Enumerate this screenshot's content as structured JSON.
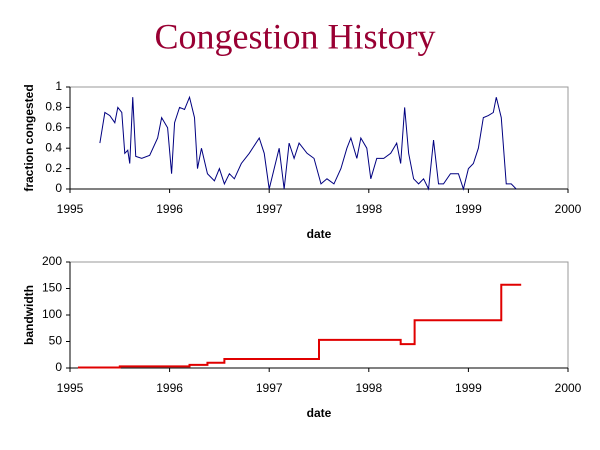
{
  "title": "Congestion History",
  "chart_data": [
    {
      "type": "line",
      "xlabel": "date",
      "ylabel": "fraction congested",
      "xlim": [
        1995,
        2000
      ],
      "xticks": [
        1995,
        1996,
        1997,
        1998,
        1999,
        2000
      ],
      "ylim": [
        0,
        1
      ],
      "yticks": [
        0,
        0.2,
        0.4,
        0.6,
        0.8,
        1
      ],
      "grid": false,
      "series": [
        {
          "color": "#000080",
          "x": [
            1995.3,
            1995.35,
            1995.4,
            1995.45,
            1995.48,
            1995.52,
            1995.55,
            1995.58,
            1995.6,
            1995.63,
            1995.66,
            1995.72,
            1995.8,
            1995.88,
            1995.92,
            1995.98,
            1996.02,
            1996.05,
            1996.1,
            1996.15,
            1996.2,
            1996.25,
            1996.28,
            1996.32,
            1996.38,
            1996.45,
            1996.5,
            1996.55,
            1996.6,
            1996.65,
            1996.72,
            1996.8,
            1996.9,
            1996.95,
            1997.0,
            1997.05,
            1997.1,
            1997.15,
            1997.2,
            1997.25,
            1997.3,
            1997.38,
            1997.45,
            1997.52,
            1997.58,
            1997.65,
            1997.72,
            1997.78,
            1997.82,
            1997.88,
            1997.92,
            1997.98,
            1998.02,
            1998.08,
            1998.15,
            1998.22,
            1998.28,
            1998.32,
            1998.36,
            1998.4,
            1998.45,
            1998.5,
            1998.55,
            1998.6,
            1998.65,
            1998.7,
            1998.75,
            1998.82,
            1998.9,
            1998.95,
            1999.0,
            1999.05,
            1999.1,
            1999.15,
            1999.2,
            1999.25,
            1999.28,
            1999.33,
            1999.38,
            1999.43,
            1999.48
          ],
          "values": [
            0.45,
            0.75,
            0.72,
            0.65,
            0.8,
            0.75,
            0.35,
            0.38,
            0.25,
            0.9,
            0.32,
            0.3,
            0.33,
            0.5,
            0.7,
            0.6,
            0.15,
            0.65,
            0.8,
            0.78,
            0.9,
            0.7,
            0.2,
            0.4,
            0.15,
            0.08,
            0.2,
            0.05,
            0.15,
            0.1,
            0.25,
            0.35,
            0.5,
            0.35,
            0.0,
            0.2,
            0.4,
            0.0,
            0.45,
            0.3,
            0.45,
            0.35,
            0.3,
            0.05,
            0.1,
            0.05,
            0.2,
            0.4,
            0.5,
            0.3,
            0.5,
            0.4,
            0.1,
            0.3,
            0.3,
            0.35,
            0.45,
            0.25,
            0.8,
            0.35,
            0.1,
            0.05,
            0.1,
            0.0,
            0.48,
            0.05,
            0.05,
            0.15,
            0.15,
            0.0,
            0.2,
            0.25,
            0.4,
            0.7,
            0.72,
            0.75,
            0.9,
            0.7,
            0.05,
            0.05,
            0.0
          ]
        }
      ]
    },
    {
      "type": "line",
      "xlabel": "date",
      "ylabel": "bandwidth",
      "xlim": [
        1995,
        2000
      ],
      "xticks": [
        1995,
        1996,
        1997,
        1998,
        1999,
        2000
      ],
      "ylim": [
        0,
        200
      ],
      "yticks": [
        0,
        50,
        100,
        150,
        200
      ],
      "grid": false,
      "series": [
        {
          "color": "#e00000",
          "x": [
            1995.08,
            1995.5,
            1995.5,
            1996.2,
            1996.2,
            1996.38,
            1996.38,
            1996.55,
            1996.55,
            1997.5,
            1997.5,
            1998.32,
            1998.32,
            1998.46,
            1998.46,
            1999.33,
            1999.33,
            1999.53
          ],
          "values": [
            1,
            1,
            3,
            3,
            6,
            6,
            10,
            10,
            17,
            17,
            53,
            53,
            45,
            45,
            90,
            90,
            157,
            157
          ]
        }
      ]
    }
  ]
}
